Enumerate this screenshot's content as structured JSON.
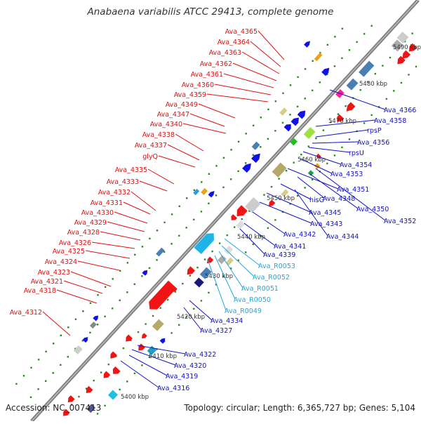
{
  "title": "Anabaena variabilis ATCC 29413, complete genome",
  "accession_text": "Accession: NC_007413",
  "topology_text": "Topology: circular; Length: 6,365,727 bp; Genes: 5,104",
  "colors": {
    "backbone": "#8a8a8a",
    "forward_gene": "#f01414",
    "reverse_gene": "#1010e8",
    "rna_gene": "#1fb4e8",
    "left_label": "#e01010",
    "right_label": "#1010c8",
    "rna_label": "#1aa8e0",
    "tick_dot": "#2a8a1a"
  },
  "scale_labels": [
    "5400 kbp",
    "5410 kbp",
    "5420 kbp",
    "5430 kbp",
    "5440 kbp",
    "5450 kbp",
    "5460 kbp",
    "5470 kbp",
    "5480 kbp",
    "5490 kbp"
  ],
  "left_labels": [
    "Ava_4365",
    "Ava_4364",
    "Ava_4363",
    "Ava_4362",
    "Ava_4361",
    "Ava_4360",
    "Ava_4359",
    "Ava_4349",
    "Ava_4347",
    "Ava_4340",
    "Ava_4338",
    "Ava_4337",
    "glyQ",
    "Ava_4335",
    "Ava_4333",
    "Ava_4332",
    "Ava_4331",
    "Ava_4330",
    "Ava_4329",
    "Ava_4328",
    "Ava_4326",
    "Ava_4325",
    "Ava_4324",
    "Ava_4323",
    "Ava_4321",
    "Ava_4318",
    "Ava_4312"
  ],
  "right_labels": [
    "Ava_4366",
    "Ava_4358",
    "rpsP",
    "Ava_4356",
    "rpsU",
    "Ava_4354",
    "Ava_4353",
    "Ava_4351",
    "hisG",
    "Ava_4348",
    "Ava_4350",
    "Ava_4345",
    "Ava_4352",
    "Ava_4343",
    "Ava_4342",
    "Ava_4344",
    "Ava_4341",
    "Ava_4339",
    "Ava_R0053",
    "Ava_R0052",
    "Ava_R0051",
    "Ava_R0050",
    "Ava_R0049",
    "Ava_4334",
    "Ava_4327",
    "Ava_4322",
    "Ava_4320",
    "Ava_4319",
    "Ava_4316"
  ]
}
